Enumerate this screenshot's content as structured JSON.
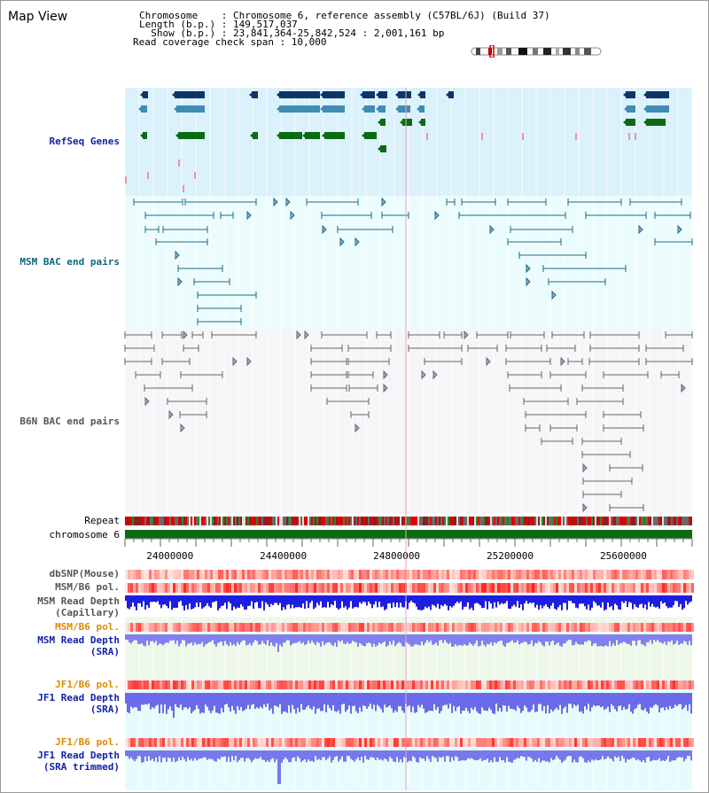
{
  "header": {
    "title": "Map View",
    "lines": [
      "Chromosome    : Chromosome 6, reference assembly (C57BL/6J) (Build 37)",
      "Length (b.p.) : 149,517,037",
      "  Show (b.p.) : 23,841,364-25,842,524 : 2,001,161 bp",
      "Read coverage check span : 10,000"
    ]
  },
  "tracks": {
    "refseq": "RefSeq Genes",
    "msm_bac": "MSM BAC end pairs",
    "b6n_bac": "B6N BAC end pairs",
    "repeat": "Repeat",
    "chromosome": "chromosome 6",
    "dbsnp": "dbSNP(Mouse)",
    "msm_b6_pol": "MSM/B6 pol.",
    "msm_depth_cap_1": "MSM Read Depth",
    "msm_depth_cap_2": "(Capillary)",
    "msm_b6_pol_2": "MSM/B6 pol.",
    "msm_depth_sra_1": "MSM Read Depth",
    "msm_depth_sra_2": "(SRA)",
    "jf1_b6_pol": "JF1/B6 pol.",
    "jf1_depth_sra_1": "JF1 Read Depth",
    "jf1_depth_sra_2": "(SRA)",
    "jf1_b6_pol_2": "JF1/B6 pol.",
    "jf1_depth_trim_1": "JF1 Read Depth",
    "jf1_depth_trim_2": "(SRA trimmed)"
  },
  "axis": {
    "range_bp": [
      23841364,
      25842524
    ],
    "ticks": [
      "24000000",
      "24400000",
      "24800000",
      "25200000",
      "25600000"
    ],
    "tick_values": [
      24000000,
      24400000,
      24800000,
      25200000,
      25600000
    ]
  },
  "colors": {
    "refseq_bg": "#dbf1fb",
    "bac_bg": "#ecfcfc",
    "b6n_bg": "#f6f6f8",
    "gene_dark": "#0d3567",
    "gene_mid": "#3f8db3",
    "gene_green": "#0b6b13",
    "msm_bac": "#1a6b86",
    "b6n_bac": "#666666",
    "label_blue": "#1122aa",
    "label_orange": "#e08a00",
    "label_teal": "#11667e",
    "depth_blue": "#2020e0",
    "depth_light": "#7a7ae8"
  }
}
